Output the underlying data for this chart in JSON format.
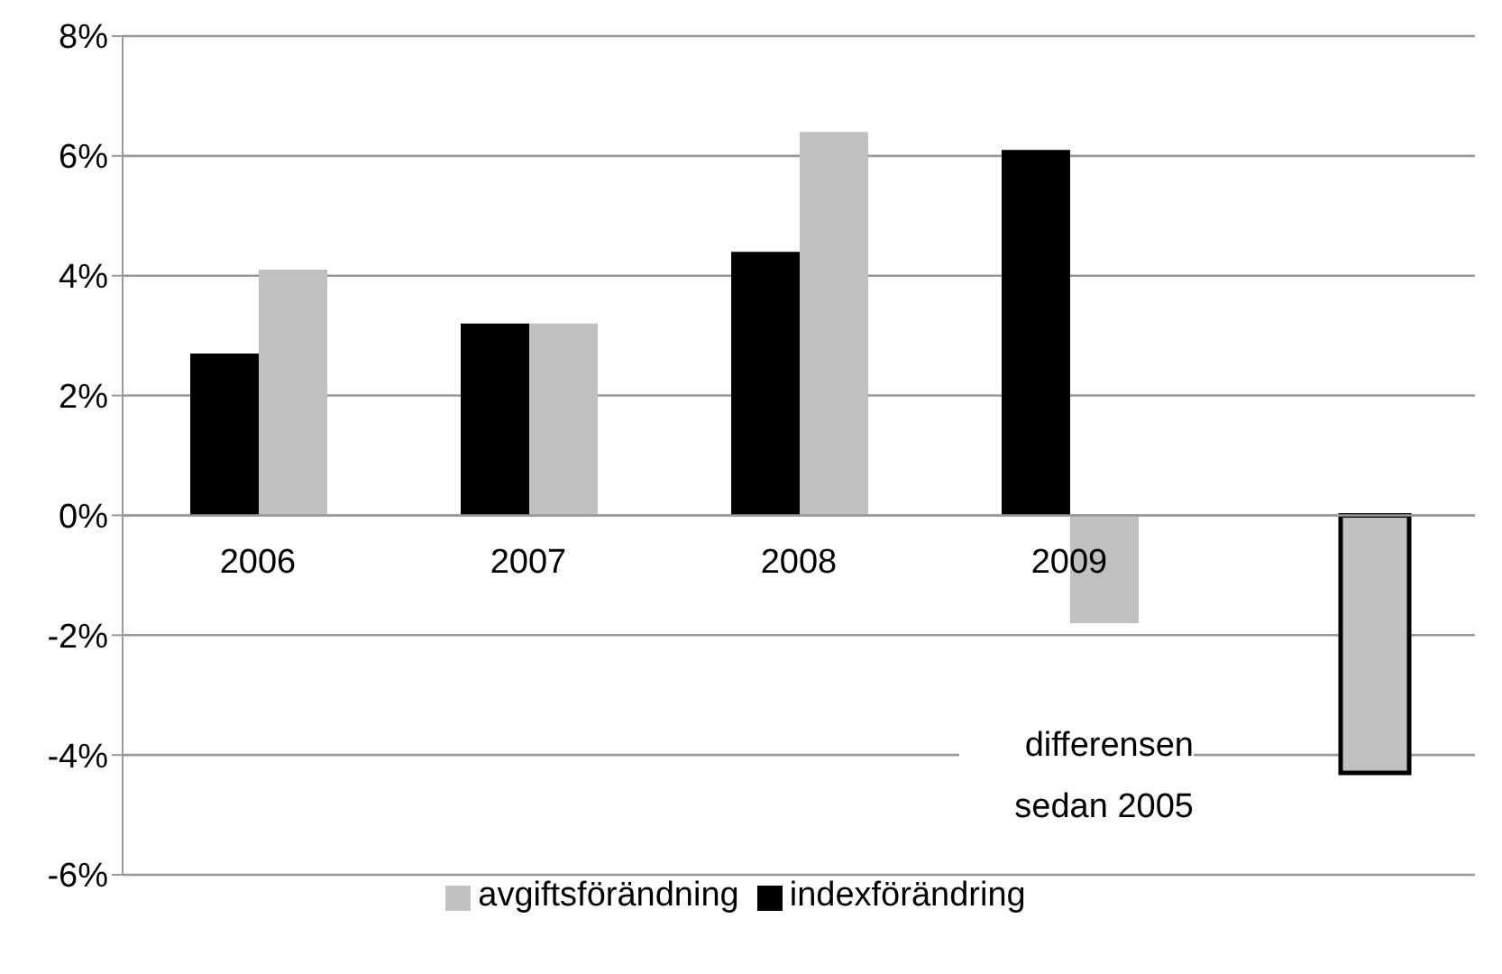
{
  "chart_data": {
    "type": "bar",
    "categories": [
      "2006",
      "2007",
      "2008",
      "2009",
      null
    ],
    "series": [
      {
        "name": "indexförändring",
        "color": "#000000",
        "values": [
          2.7,
          3.2,
          4.4,
          6.1,
          null
        ]
      },
      {
        "name": "avgiftsförändning",
        "color": "#c0c0c0",
        "values": [
          4.1,
          3.2,
          6.4,
          -1.8,
          -4.3
        ]
      }
    ],
    "ylim": [
      -6,
      8
    ],
    "yticks": [
      {
        "value": -6,
        "label": "-6%"
      },
      {
        "value": -4,
        "label": "-4%"
      },
      {
        "value": -2,
        "label": "-2%"
      },
      {
        "value": 0,
        "label": "0%"
      },
      {
        "value": 2,
        "label": "2%"
      },
      {
        "value": 4,
        "label": "4%"
      },
      {
        "value": 6,
        "label": "6%"
      },
      {
        "value": 8,
        "label": "8%"
      }
    ],
    "grid": "y",
    "legend": "bottom",
    "annotations": [
      "differensen sedan 2005"
    ]
  }
}
